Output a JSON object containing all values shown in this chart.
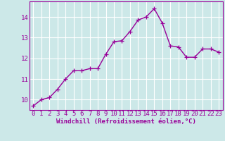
{
  "xlabel": "Windchill (Refroidissement éolien,°C)",
  "x": [
    0,
    1,
    2,
    3,
    4,
    5,
    6,
    7,
    8,
    9,
    10,
    11,
    12,
    13,
    14,
    15,
    16,
    17,
    18,
    19,
    20,
    21,
    22,
    23
  ],
  "y": [
    9.7,
    10.0,
    10.1,
    10.5,
    11.0,
    11.4,
    11.4,
    11.5,
    11.5,
    12.2,
    12.8,
    12.85,
    13.3,
    13.85,
    14.0,
    14.4,
    13.7,
    12.6,
    12.55,
    12.05,
    12.05,
    12.45,
    12.45,
    12.3
  ],
  "line_color": "#990099",
  "marker": "+",
  "marker_size": 4,
  "bg_color": "#cce8e8",
  "grid_color": "#ffffff",
  "axis_label_color": "#990099",
  "tick_label_color": "#990099",
  "ylim": [
    9.5,
    14.75
  ],
  "yticks": [
    10,
    11,
    12,
    13,
    14
  ],
  "xticks": [
    0,
    1,
    2,
    3,
    4,
    5,
    6,
    7,
    8,
    9,
    10,
    11,
    12,
    13,
    14,
    15,
    16,
    17,
    18,
    19,
    20,
    21,
    22,
    23
  ],
  "linewidth": 1.0,
  "font_size": 6.5
}
